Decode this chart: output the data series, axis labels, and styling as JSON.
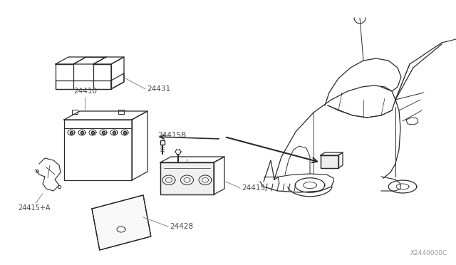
{
  "bg_color": "#ffffff",
  "line_color": "#2a2a2a",
  "label_color": "#4a4a4a",
  "watermark": "X2440000C",
  "fig_width": 6.4,
  "fig_height": 3.72,
  "lw": 0.9
}
